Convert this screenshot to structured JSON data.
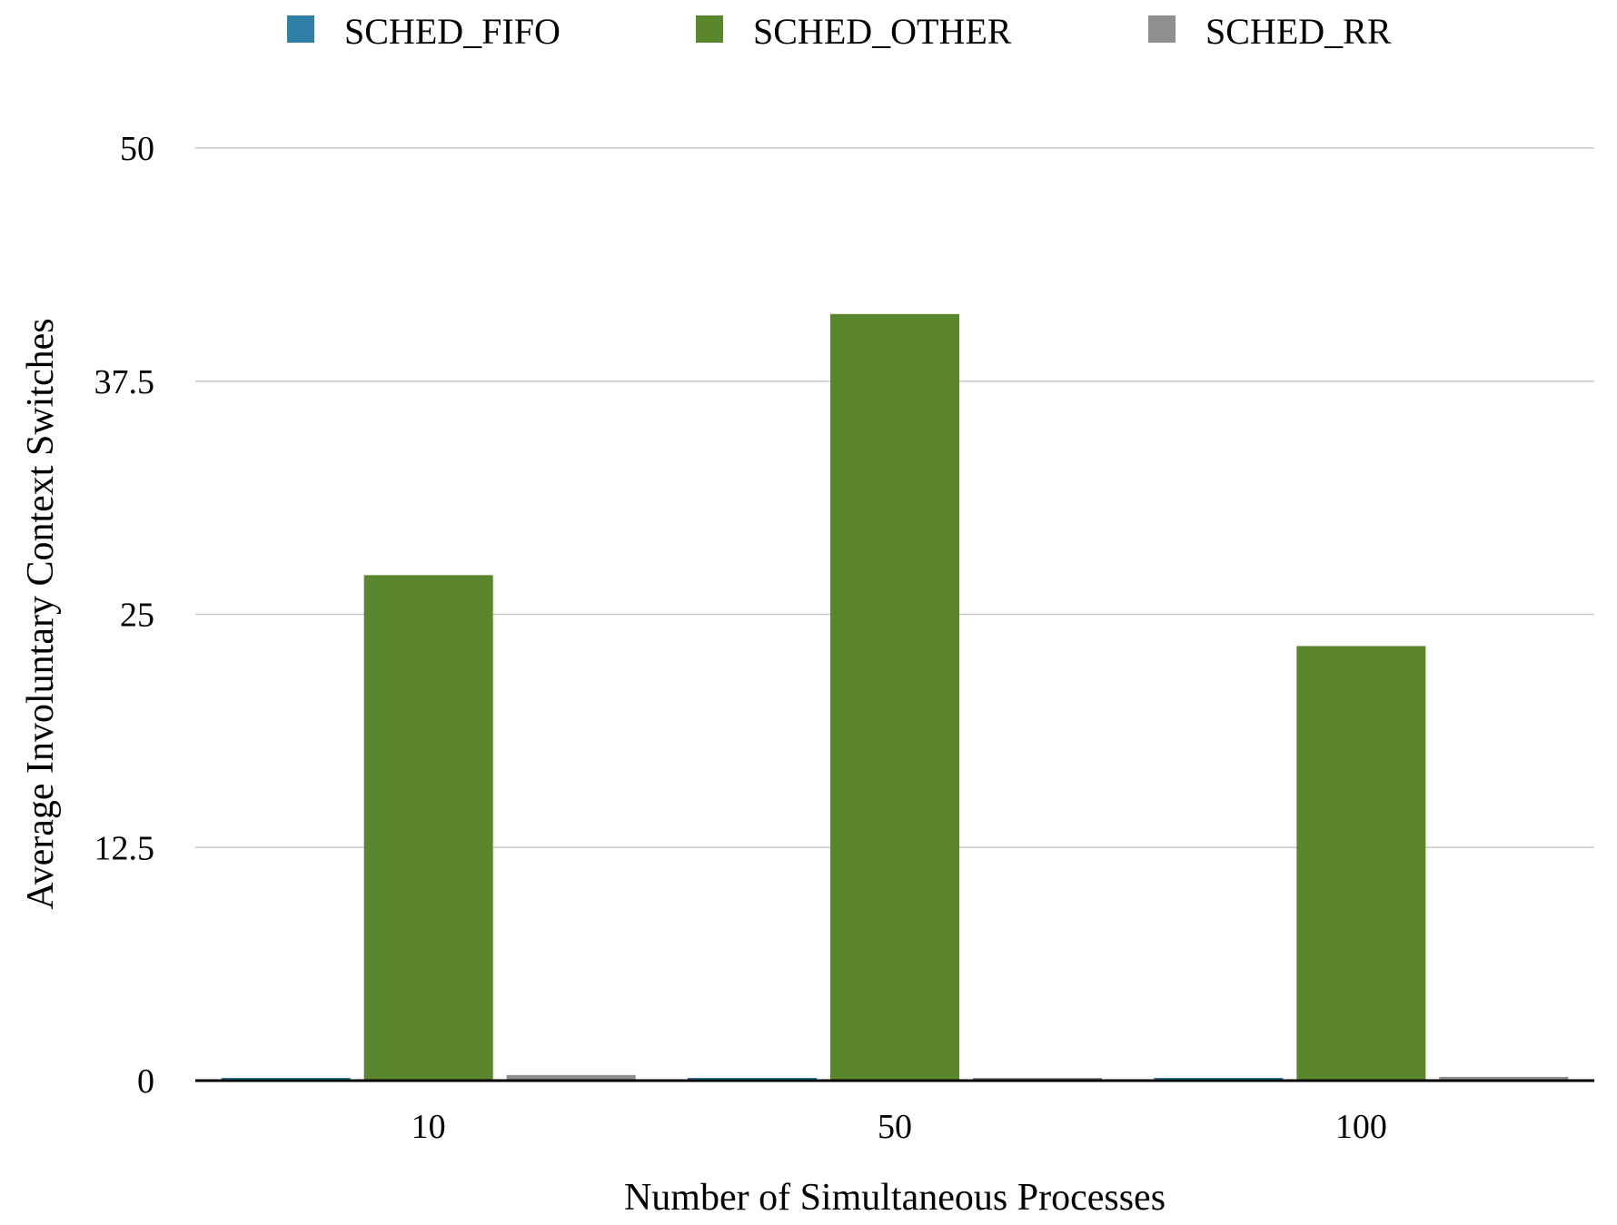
{
  "colors": {
    "SCHED_FIFO": "#2f7fa6",
    "SCHED_OTHER": "#5a862e",
    "SCHED_RR": "#8f8f8f",
    "grid": "#c8c8c8",
    "axis": "#000000"
  },
  "chart_data": {
    "type": "bar",
    "categories": [
      "10",
      "50",
      "100"
    ],
    "series": [
      {
        "name": "SCHED_FIFO",
        "values": [
          0.15,
          0.15,
          0.15
        ]
      },
      {
        "name": "SCHED_OTHER",
        "values": [
          27.1,
          41.1,
          23.3
        ]
      },
      {
        "name": "SCHED_RR",
        "values": [
          0.3,
          0.1,
          0.2
        ]
      }
    ],
    "xlabel": "Number of Simultaneous Processes",
    "ylabel": "Average Involuntary Context Switches",
    "ylim": [
      0,
      50
    ],
    "yticks": [
      "0",
      "12.5",
      "25",
      "37.5",
      "50"
    ],
    "grid": true,
    "legend_position": "top-center"
  }
}
